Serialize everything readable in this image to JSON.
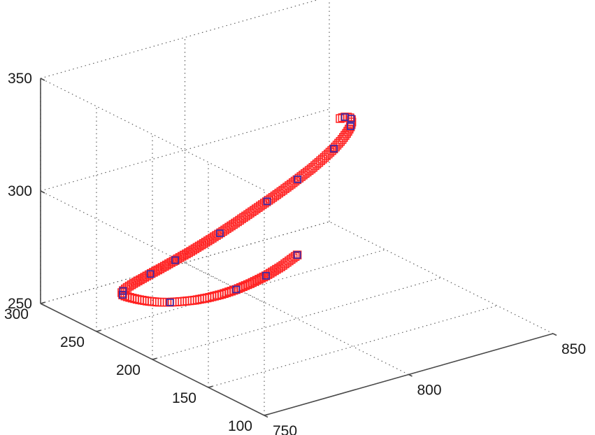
{
  "chart_data": {
    "type": "scatter",
    "projection": "3d",
    "grid": true,
    "xlim": [
      750,
      850
    ],
    "ylim": [
      100,
      300
    ],
    "zlim": [
      250,
      350
    ],
    "x_ticks": [
      {
        "value": 750,
        "label": "750"
      },
      {
        "value": 800,
        "label": "800"
      },
      {
        "value": 850,
        "label": "850"
      }
    ],
    "y_ticks": [
      {
        "value": 100,
        "label": "100"
      },
      {
        "value": 150,
        "label": "150"
      },
      {
        "value": 200,
        "label": "200"
      },
      {
        "value": 250,
        "label": "250"
      },
      {
        "value": 300,
        "label": "300"
      }
    ],
    "z_ticks": [
      {
        "value": 250,
        "label": "250"
      },
      {
        "value": 300,
        "label": "300"
      },
      {
        "value": 350,
        "label": "350"
      }
    ],
    "series": [
      {
        "marker": "square",
        "color": "#ff2020",
        "points": [
          [
            804.9,
            212.3,
            273.4
          ],
          [
            801.1,
            216.5,
            268.7
          ],
          [
            797.3,
            220.5,
            264.9
          ],
          [
            793.5,
            224.3,
            262.0
          ],
          [
            789.7,
            227.6,
            259.8
          ],
          [
            785.9,
            230.6,
            258.3
          ],
          [
            782.1,
            233.2,
            257.5
          ],
          [
            778.3,
            235.2,
            257.3
          ],
          [
            774.5,
            236.8,
            257.7
          ],
          [
            770.7,
            237.7,
            258.5
          ],
          [
            766.8,
            238.0,
            259.9
          ],
          [
            763.0,
            237.7,
            261.8
          ],
          [
            759.2,
            236.7,
            264.2
          ],
          [
            755.4,
            234.8,
            267.0
          ],
          [
            753.5,
            233.2,
            268.6
          ],
          [
            751.7,
            231.0,
            270.4
          ],
          [
            750.2,
            228.0,
            272.4
          ],
          [
            749.3,
            224.5,
            274.6
          ],
          [
            749.0,
            220.6,
            277.0
          ],
          [
            749.5,
            216.6,
            279.5
          ],
          [
            750.8,
            212.8,
            282.0
          ],
          [
            752.9,
            209.3,
            284.6
          ],
          [
            755.7,
            206.1,
            287.2
          ],
          [
            759.2,
            203.4,
            289.9
          ],
          [
            763.4,
            201.4,
            292.5
          ],
          [
            768.1,
            200.2,
            295.1
          ],
          [
            773.2,
            199.6,
            297.7
          ],
          [
            778.6,
            199.6,
            300.3
          ],
          [
            784.3,
            200.1,
            302.9
          ],
          [
            790.1,
            201.0,
            305.4
          ],
          [
            796.0,
            202.1,
            307.9
          ],
          [
            801.7,
            203.7,
            310.3
          ],
          [
            807.3,
            205.7,
            312.5
          ],
          [
            812.5,
            208.2,
            314.7
          ],
          [
            817.1,
            211.0,
            316.5
          ],
          [
            821.0,
            214.2,
            318.1
          ],
          [
            824.3,
            217.7,
            319.4
          ],
          [
            826.9,
            221.3,
            320.3
          ],
          [
            828.7,
            224.9,
            320.8
          ],
          [
            829.8,
            228.4,
            320.9
          ],
          [
            830.2,
            231.6,
            320.6
          ],
          [
            830.0,
            234.5,
            320.0
          ],
          [
            829.6,
            236.3,
            319.3
          ],
          [
            829.0,
            237.9,
            318.5
          ]
        ]
      },
      {
        "marker": "square",
        "color": "#3a2aa8",
        "points": [
          [
            804.9,
            212.3,
            273.4
          ],
          [
            797.3,
            220.5,
            264.9
          ],
          [
            789.7,
            227.6,
            259.8
          ],
          [
            770.7,
            237.7,
            258.5
          ],
          [
            751.7,
            231.0,
            270.4
          ],
          [
            749.3,
            224.5,
            274.6
          ],
          [
            752.9,
            209.3,
            284.6
          ],
          [
            759.2,
            203.4,
            289.9
          ],
          [
            773.2,
            199.6,
            297.7
          ],
          [
            790.1,
            201.0,
            305.4
          ],
          [
            801.7,
            203.7,
            310.3
          ],
          [
            817.1,
            211.0,
            316.5
          ],
          [
            826.9,
            221.3,
            320.3
          ],
          [
            829.8,
            228.4,
            320.9
          ],
          [
            830.0,
            234.5,
            320.0
          ]
        ]
      }
    ]
  }
}
